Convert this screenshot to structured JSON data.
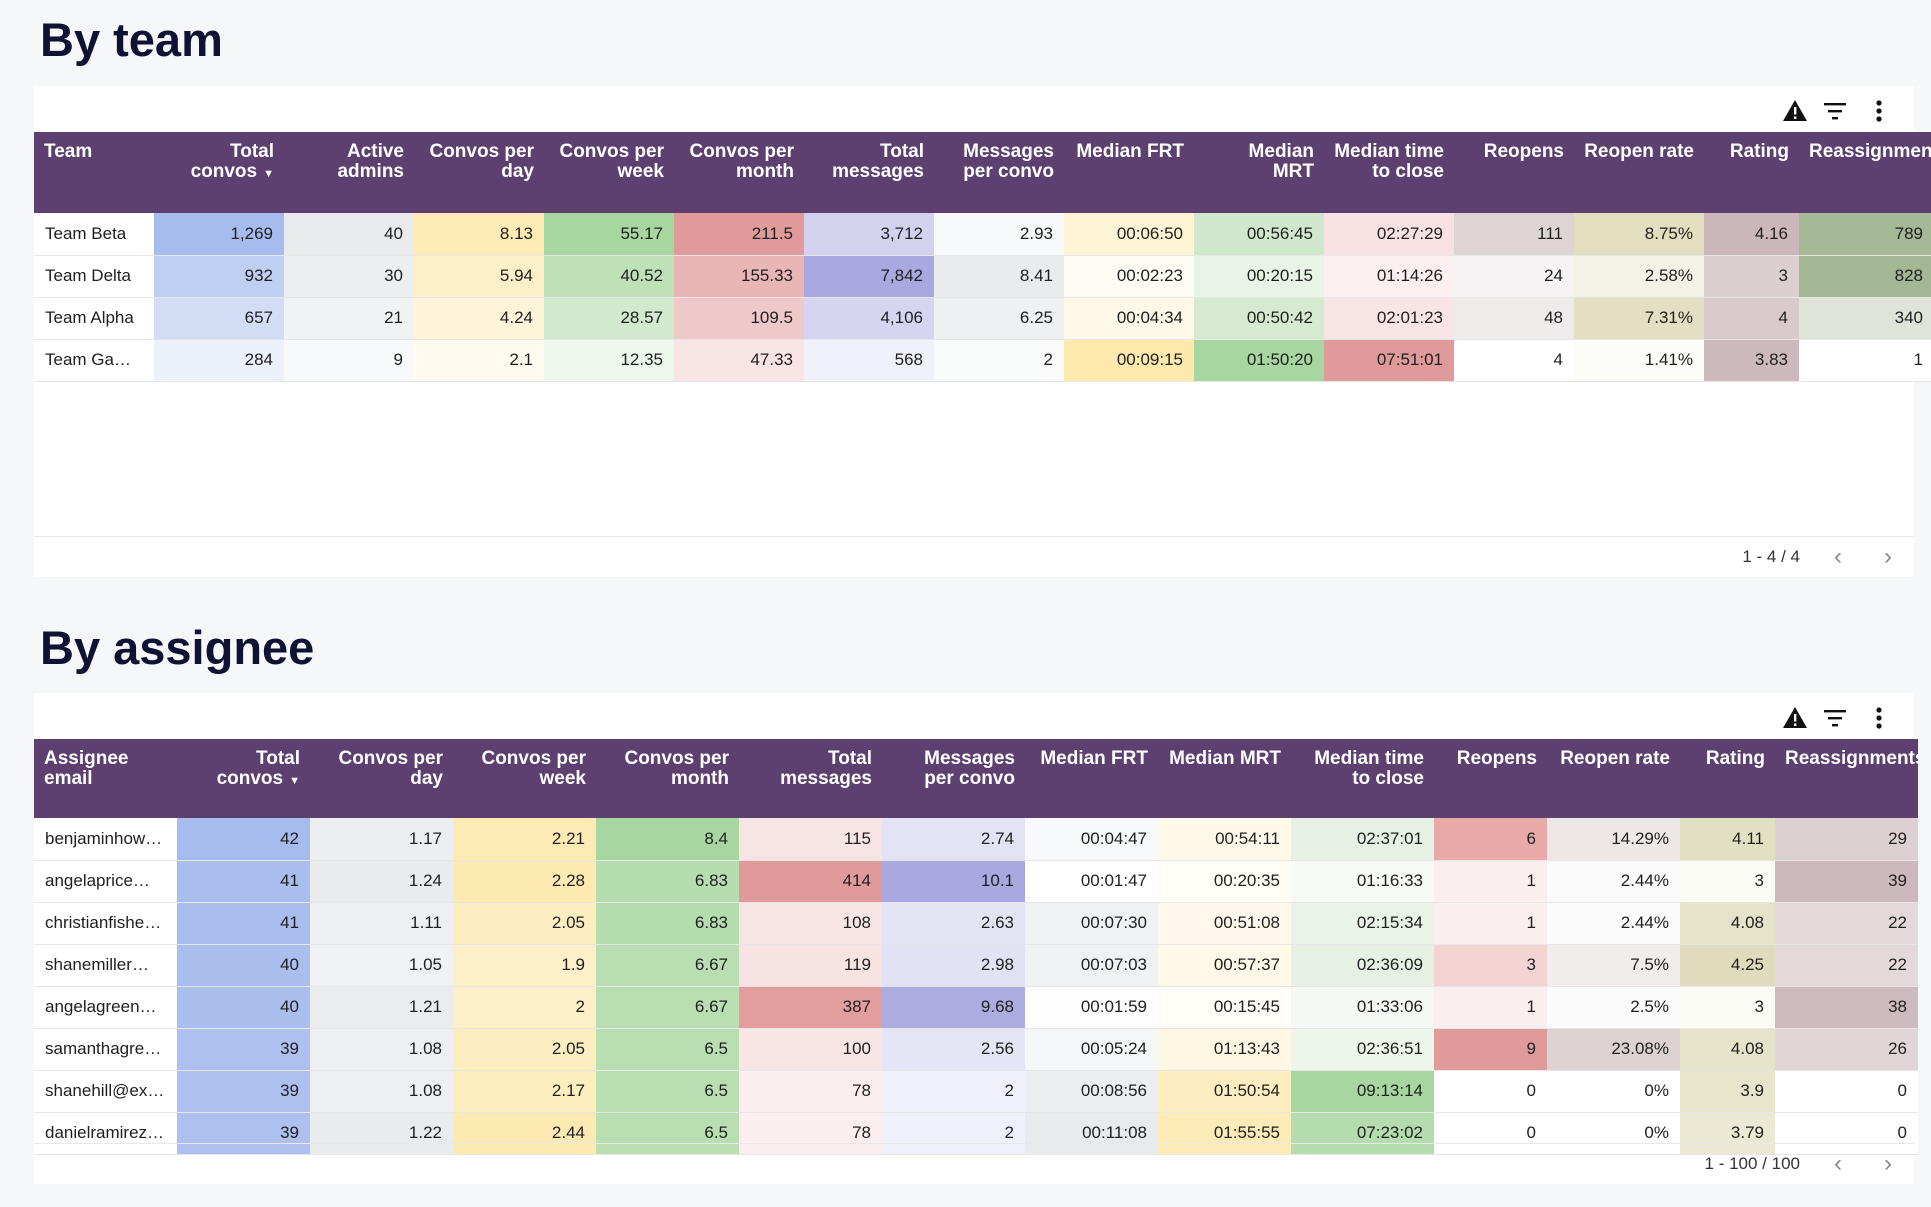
{
  "team_section": {
    "title": "By team",
    "headers": [
      "Team",
      "Total convos",
      "Active admins",
      "Convos per day",
      "Convos per week",
      "Convos per month",
      "Total messages",
      "Messages per convo",
      "Median FRT",
      "Median MRT",
      "Median time to close",
      "Reopens",
      "Reopen rate",
      "Rating",
      "Reassignments"
    ],
    "sort_icon": "caret-down-icon",
    "rows": [
      [
        "Team Beta",
        "1,269",
        "40",
        "8.13",
        "55.17",
        "211.5",
        "3,712",
        "2.93",
        "00:06:50",
        "00:56:45",
        "02:27:29",
        "111",
        "8.75%",
        "4.16",
        "789"
      ],
      [
        "Team Delta",
        "932",
        "30",
        "5.94",
        "40.52",
        "155.33",
        "7,842",
        "8.41",
        "00:02:23",
        "00:20:15",
        "01:14:26",
        "24",
        "2.58%",
        "3",
        "828"
      ],
      [
        "Team Alpha",
        "657",
        "21",
        "4.24",
        "28.57",
        "109.5",
        "4,106",
        "6.25",
        "00:04:34",
        "00:50:42",
        "02:01:23",
        "48",
        "7.31%",
        "4",
        "340"
      ],
      [
        "Team Gam…",
        "284",
        "9",
        "2.1",
        "12.35",
        "47.33",
        "568",
        "2",
        "00:09:15",
        "01:50:20",
        "07:51:01",
        "4",
        "1.41%",
        "3.83",
        "1"
      ]
    ],
    "colors": [
      [
        "#ffffff",
        "#a6bcef",
        "#e8eaec",
        "#fdeab4",
        "#a8d6a0",
        "#df9a99",
        "#d2d2ef",
        "#f8f9fa",
        "#fdf4d6",
        "#cfe7cb",
        "#f7e1e2",
        "#dcd5d4",
        "#e2dec0",
        "#ccb8bc",
        "#a5b996"
      ],
      [
        "#ffffff",
        "#bfcff2",
        "#eceeef",
        "#fdf0c9",
        "#bfe1b8",
        "#eab6b5",
        "#a9a8e0",
        "#e9ebec",
        "#fefcf5",
        "#e8f4e6",
        "#fbeff0",
        "#f5f3f3",
        "#f4f2e6",
        "#dbcfd0",
        "#a3b795"
      ],
      [
        "#ffffff",
        "#d2dcf5",
        "#f1f2f4",
        "#fef4da",
        "#d1e9cc",
        "#efc9c9",
        "#d5d5f1",
        "#eef0f1",
        "#fef8e9",
        "#d5eacf",
        "#f9e5e6",
        "#eeebeb",
        "#e2dfc2",
        "#d8cacc",
        "#dee4d8"
      ],
      [
        "#ffffff",
        "#ecf0fb",
        "#f8f9fa",
        "#fffbf1",
        "#eef7ec",
        "#f8e4e4",
        "#f1f1fa",
        "#fafbfb",
        "#fde8ae",
        "#a8d6a0",
        "#df9a99",
        "#ffffff",
        "#fcfcf8",
        "#cdb9bd",
        "#ffffff"
      ]
    ],
    "pagination": "1 - 4 / 4"
  },
  "assignee_section": {
    "title": "By assignee",
    "headers": [
      "Assignee email",
      "Total convos",
      "Convos per day",
      "Convos per week",
      "Convos per month",
      "Total messages",
      "Messages per convo",
      "Median FRT",
      "Median MRT",
      "Median time to close",
      "Reopens",
      "Reopen rate",
      "Rating",
      "Reassignments"
    ],
    "sort_icon": "caret-down-icon",
    "rows": [
      [
        "benjaminhow…",
        "42",
        "1.17",
        "2.21",
        "8.4",
        "115",
        "2.74",
        "00:04:47",
        "00:54:11",
        "02:37:01",
        "6",
        "14.29%",
        "4.11",
        "29"
      ],
      [
        "angelaprice@…",
        "41",
        "1.24",
        "2.28",
        "6.83",
        "414",
        "10.1",
        "00:01:47",
        "00:20:35",
        "01:16:33",
        "1",
        "2.44%",
        "3",
        "39"
      ],
      [
        "christianfishe…",
        "41",
        "1.11",
        "2.05",
        "6.83",
        "108",
        "2.63",
        "00:07:30",
        "00:51:08",
        "02:15:34",
        "1",
        "2.44%",
        "4.08",
        "22"
      ],
      [
        "shanemiller@…",
        "40",
        "1.05",
        "1.9",
        "6.67",
        "119",
        "2.98",
        "00:07:03",
        "00:57:37",
        "02:36:09",
        "3",
        "7.5%",
        "4.25",
        "22"
      ],
      [
        "angelagreen…",
        "40",
        "1.21",
        "2",
        "6.67",
        "387",
        "9.68",
        "00:01:59",
        "00:15:45",
        "01:33:06",
        "1",
        "2.5%",
        "3",
        "38"
      ],
      [
        "samanthagre…",
        "39",
        "1.08",
        "2.05",
        "6.5",
        "100",
        "2.56",
        "00:05:24",
        "01:13:43",
        "02:36:51",
        "9",
        "23.08%",
        "4.08",
        "26"
      ],
      [
        "shanehill@ex…",
        "39",
        "1.08",
        "2.17",
        "6.5",
        "78",
        "2",
        "00:08:56",
        "01:50:54",
        "09:13:14",
        "0",
        "0%",
        "3.9",
        "0"
      ],
      [
        "danielramirez…",
        "39",
        "1.22",
        "2.44",
        "6.5",
        "78",
        "2",
        "00:11:08",
        "01:55:55",
        "07:23:02",
        "0",
        "0%",
        "3.79",
        "0"
      ]
    ],
    "colors": [
      [
        "#ffffff",
        "#a6bcef",
        "#eceeef",
        "#fdeab4",
        "#a8d6a0",
        "#f8e4e4",
        "#e3e3f5",
        "#f8f9fa",
        "#fef8e9",
        "#e6f1e3",
        "#e9a9a9",
        "#ede7e6",
        "#e1e0c2",
        "#dcd0d1"
      ],
      [
        "#ffffff",
        "#a9beef",
        "#e9ebec",
        "#fde9b2",
        "#b6ddaf",
        "#df9a99",
        "#a9a8e0",
        "#ffffff",
        "#fffdf6",
        "#f6faf5",
        "#fbeeee",
        "#fcfbfb",
        "#fcfcf7",
        "#cdb9bd"
      ],
      [
        "#ffffff",
        "#a9beef",
        "#edeff0",
        "#fdeec2",
        "#b6ddaf",
        "#f8e6e6",
        "#e4e4f5",
        "#eff1f2",
        "#fef8ea",
        "#e9f3e7",
        "#fbeeee",
        "#fcfbfb",
        "#e5e3c9",
        "#e3d9da"
      ],
      [
        "#ffffff",
        "#abbfef",
        "#eff1f2",
        "#fdf0c8",
        "#b8deb1",
        "#f8e3e3",
        "#e2e2f5",
        "#eff1f2",
        "#fef8e8",
        "#e6f1e3",
        "#f4d3d3",
        "#f1eded",
        "#dfdcbd",
        "#e3d9da"
      ],
      [
        "#ffffff",
        "#abbfef",
        "#eaeced",
        "#fdefc7",
        "#b8deb1",
        "#e19e9d",
        "#adace1",
        "#fefefe",
        "#fefdf8",
        "#f4f9f3",
        "#fbeeee",
        "#fcfbfb",
        "#fcfcf7",
        "#cebbbe"
      ],
      [
        "#ffffff",
        "#adc0f0",
        "#edeff0",
        "#fdeec2",
        "#b9deb2",
        "#f8e6e6",
        "#e5e5f6",
        "#f5f6f7",
        "#fef7e4",
        "#eef6ec",
        "#df9a99",
        "#dbd2d1",
        "#e5e3c9",
        "#e0d6d7"
      ],
      [
        "#ffffff",
        "#adc0f0",
        "#edeff0",
        "#fdeebf",
        "#b9deb2",
        "#fbeeee",
        "#f0f0fa",
        "#eceeef",
        "#fdedc1",
        "#a8d6a0",
        "#ffffff",
        "#ffffff",
        "#e7e5cc",
        "#ffffff"
      ],
      [
        "#ffffff",
        "#adc0f0",
        "#e9ebec",
        "#fde9b2",
        "#b9deb2",
        "#fbeeee",
        "#f0f0fa",
        "#e8eaeb",
        "#fdebb7",
        "#b5dcae",
        "#ffffff",
        "#ffffff",
        "#ebe9d4",
        "#ffffff"
      ]
    ],
    "pagination": "1 - 100 / 100"
  },
  "toolbar": {
    "icons": [
      "warning-icon",
      "filter-icon",
      "more-vert-icon"
    ]
  },
  "pager_icons": [
    "chevron-left-icon",
    "chevron-right-icon"
  ]
}
